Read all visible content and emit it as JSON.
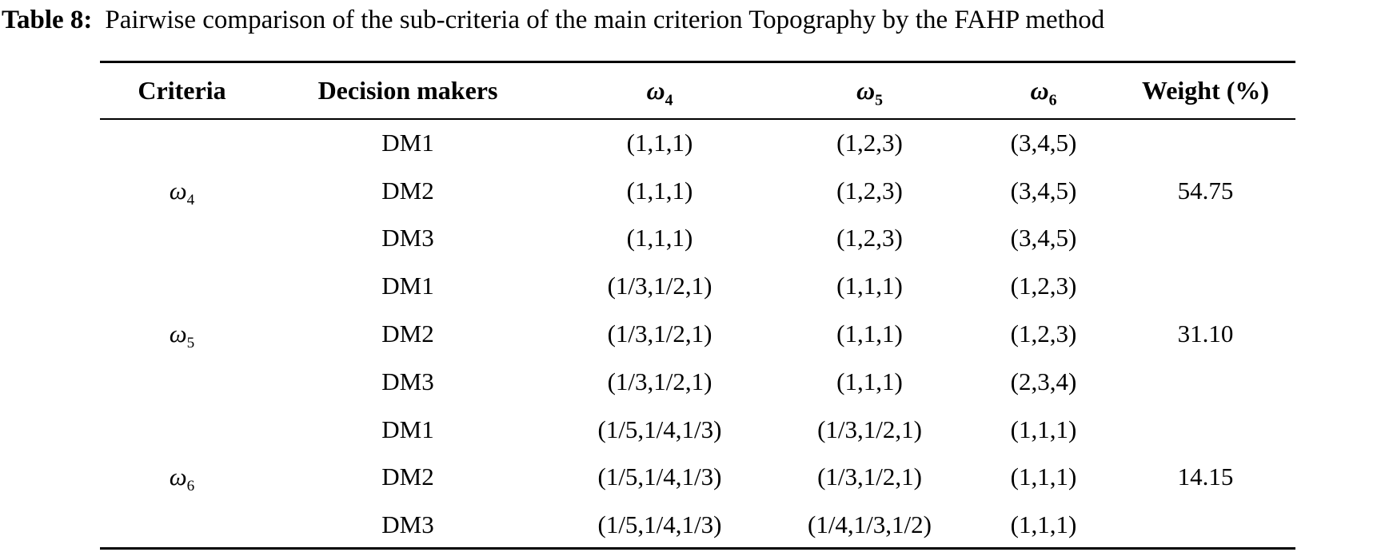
{
  "title": {
    "label": "Table 8:",
    "caption": "Pairwise comparison of the sub-criteria of the main criterion Topography by the FAHP method"
  },
  "colors": {
    "text": "#000000",
    "background": "#ffffff",
    "rule": "#000000"
  },
  "table": {
    "headers": {
      "criteria": "Criteria",
      "decision_makers": "Decision makers",
      "omega_cols": [
        {
          "base": "ω",
          "sub": "4"
        },
        {
          "base": "ω",
          "sub": "5"
        },
        {
          "base": "ω",
          "sub": "6"
        }
      ],
      "weight": "Weight (%)"
    },
    "groups": [
      {
        "criterion": {
          "base": "ω",
          "sub": "4"
        },
        "weight": "54.75",
        "rows": [
          {
            "dm": "DM1",
            "values": [
              "(1,1,1)",
              "(1,2,3)",
              "(3,4,5)"
            ]
          },
          {
            "dm": "DM2",
            "values": [
              "(1,1,1)",
              "(1,2,3)",
              "(3,4,5)"
            ]
          },
          {
            "dm": "DM3",
            "values": [
              "(1,1,1)",
              "(1,2,3)",
              "(3,4,5)"
            ]
          }
        ]
      },
      {
        "criterion": {
          "base": "ω",
          "sub": "5"
        },
        "weight": "31.10",
        "rows": [
          {
            "dm": "DM1",
            "values": [
              "(1/3,1/2,1)",
              "(1,1,1)",
              "(1,2,3)"
            ]
          },
          {
            "dm": "DM2",
            "values": [
              "(1/3,1/2,1)",
              "(1,1,1)",
              "(1,2,3)"
            ]
          },
          {
            "dm": "DM3",
            "values": [
              "(1/3,1/2,1)",
              "(1,1,1)",
              "(2,3,4)"
            ]
          }
        ]
      },
      {
        "criterion": {
          "base": "ω",
          "sub": "6"
        },
        "weight": "14.15",
        "rows": [
          {
            "dm": "DM1",
            "values": [
              "(1/5,1/4,1/3)",
              "(1/3,1/2,1)",
              "(1,1,1)"
            ]
          },
          {
            "dm": "DM2",
            "values": [
              "(1/5,1/4,1/3)",
              "(1/3,1/2,1)",
              "(1,1,1)"
            ]
          },
          {
            "dm": "DM3",
            "values": [
              "(1/5,1/4,1/3)",
              "(1/4,1/3,1/2)",
              "(1,1,1)"
            ]
          }
        ]
      }
    ]
  }
}
